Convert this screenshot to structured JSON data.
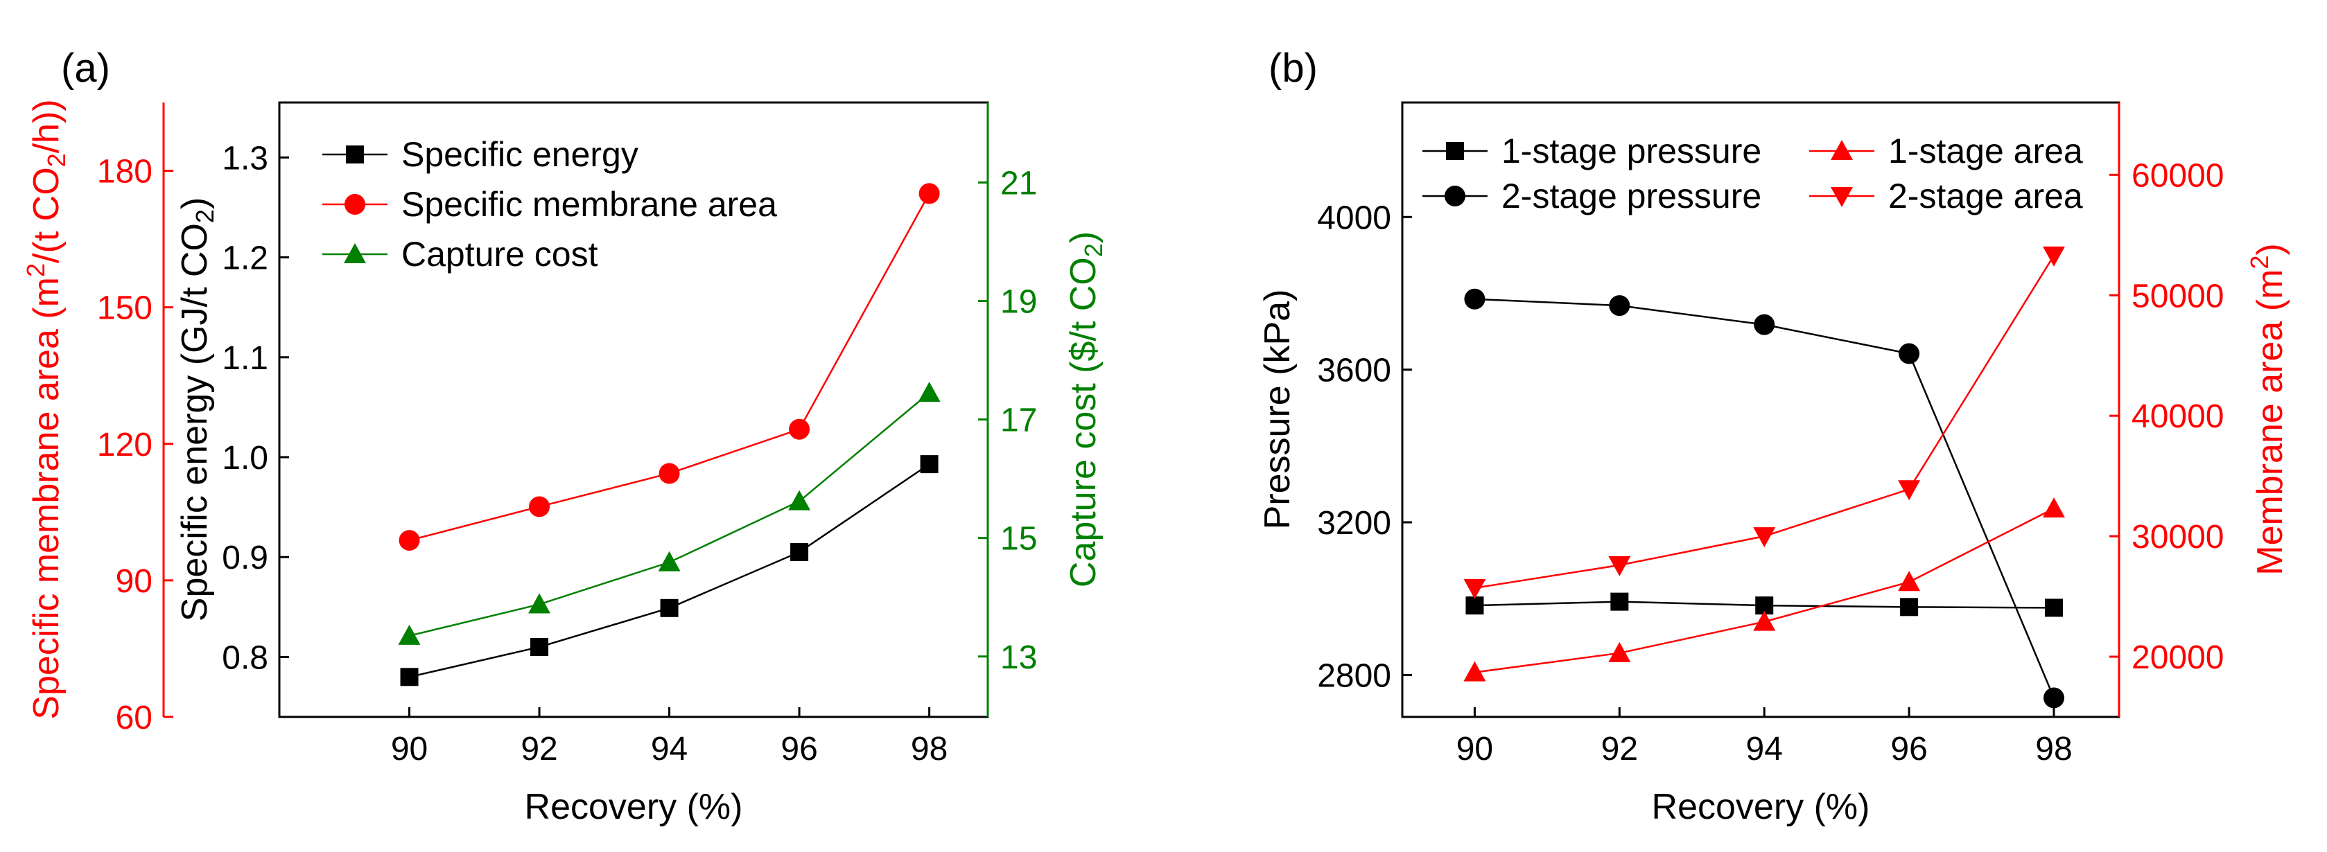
{
  "chart_data": [
    {
      "panel": "(a)",
      "type": "line",
      "xlabel": "Recovery (%)",
      "x": [
        90,
        92,
        94,
        96,
        98
      ],
      "xticks": [
        90,
        92,
        94,
        96,
        98
      ],
      "xlim": [
        88,
        98.9
      ],
      "axes": {
        "left_inner": {
          "label_parts": [
            "Specific energy (GJ/t CO",
            "2",
            ")"
          ],
          "ylim": [
            0.74,
            1.355
          ],
          "ticks": [
            "0.8",
            "0.9",
            "1.0",
            "1.1",
            "1.2",
            "1.3"
          ],
          "color": "#000000"
        },
        "left_outer": {
          "label_parts": [
            "Specific membrane area (m",
            "2",
            "/(t CO",
            "2",
            "/h))"
          ],
          "ylim": [
            60,
            195
          ],
          "ticks": [
            "60",
            "90",
            "120",
            "150",
            "180"
          ],
          "color": "#ff0000"
        },
        "right": {
          "label_parts": [
            "Capture cost ($/t CO",
            "2",
            ")"
          ],
          "ylim": [
            11.98,
            22.35
          ],
          "ticks": [
            "13",
            "15",
            "17",
            "19",
            "21"
          ],
          "color": "#008000"
        }
      },
      "series": [
        {
          "name": "Specific energy",
          "axis": "left_inner",
          "color": "#000000",
          "marker": "square",
          "values": [
            0.78,
            0.81,
            0.849,
            0.905,
            0.993
          ]
        },
        {
          "name": "Specific membrane area",
          "axis": "left_outer",
          "color": "#ff0000",
          "marker": "circle",
          "values": [
            98.8,
            106.2,
            113.5,
            123.2,
            175.0
          ]
        },
        {
          "name": "Capture cost",
          "axis": "right",
          "color": "#008000",
          "marker": "triangle-up",
          "values": [
            13.35,
            13.88,
            14.59,
            15.62,
            17.45
          ]
        }
      ],
      "legend": "top-left"
    },
    {
      "panel": "(b)",
      "type": "line",
      "xlabel": "Recovery (%)",
      "x": [
        90,
        92,
        94,
        96,
        98
      ],
      "xticks": [
        90,
        92,
        94,
        96,
        98
      ],
      "xlim": [
        89,
        98.9
      ],
      "axes": {
        "left": {
          "label_parts": [
            "Pressure (kPa)"
          ],
          "ylim": [
            2690,
            4300
          ],
          "ticks": [
            "2800",
            "3200",
            "3600",
            "4000"
          ],
          "color": "#000000"
        },
        "right": {
          "label_parts": [
            "Membrane area (m",
            "2",
            ")"
          ],
          "ylim": [
            15000,
            66000
          ],
          "ticks": [
            "20000",
            "30000",
            "40000",
            "50000",
            "60000"
          ],
          "color": "#ff0000"
        }
      },
      "series": [
        {
          "name": "1-stage pressure",
          "axis": "left",
          "color": "#000000",
          "marker": "square",
          "values": [
            2982,
            2992,
            2982,
            2978,
            2976
          ]
        },
        {
          "name": "2-stage pressure",
          "axis": "left",
          "color": "#000000",
          "marker": "circle",
          "values": [
            3785,
            3768,
            3718,
            3642,
            2740
          ]
        },
        {
          "name": "1-stage area",
          "axis": "right",
          "color": "#ff0000",
          "marker": "triangle-up",
          "values": [
            18700,
            20300,
            22900,
            26200,
            32300
          ]
        },
        {
          "name": "2-stage area",
          "axis": "right",
          "color": "#ff0000",
          "marker": "triangle-down",
          "values": [
            25700,
            27600,
            30000,
            33900,
            53300
          ]
        }
      ],
      "legend": "top (two columns)"
    }
  ]
}
